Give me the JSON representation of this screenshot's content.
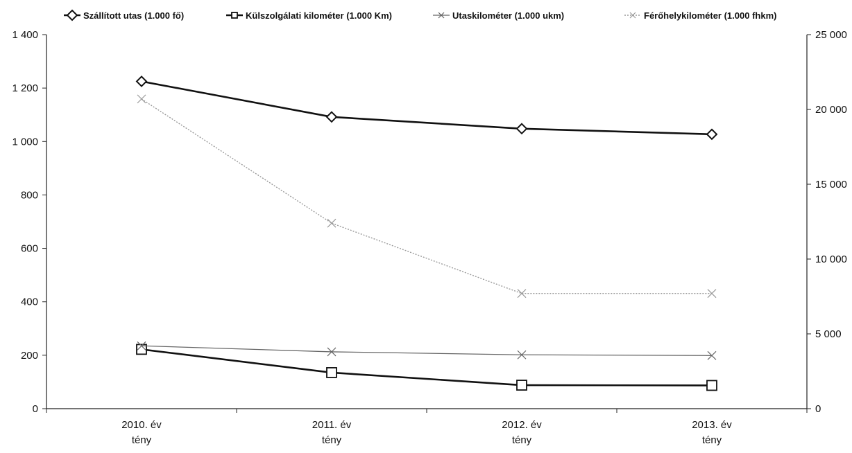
{
  "chart_data": {
    "type": "line",
    "categories": [
      [
        "2010. év",
        "tény"
      ],
      [
        "2011. év",
        "tény"
      ],
      [
        "2012. év",
        "tény"
      ],
      [
        "2013. év",
        "tény"
      ]
    ],
    "y_left": {
      "ylim": [
        0,
        1400
      ],
      "ticks": [
        0,
        200,
        400,
        600,
        800,
        1000,
        1200,
        1400
      ],
      "tick_labels": [
        "0",
        "200",
        "400",
        "600",
        "800",
        "1 000",
        "1 200",
        "1 400"
      ]
    },
    "y_right": {
      "ylim": [
        0,
        25000
      ],
      "ticks": [
        0,
        5000,
        10000,
        15000,
        20000,
        25000
      ],
      "tick_labels": [
        "0",
        "5 000",
        "10 000",
        "15 000",
        "20 000",
        "25 000"
      ]
    },
    "series": [
      {
        "name": "Szállított utas (1.000 fő)",
        "axis": "left",
        "values": [
          1225,
          1092,
          1048,
          1027
        ],
        "color": "#111111",
        "marker": "diamond",
        "style": "solid-thick"
      },
      {
        "name": "Külszolgálati kilométer (1.000 Km)",
        "axis": "left",
        "values": [
          222,
          135,
          88,
          87
        ],
        "color": "#111111",
        "marker": "square",
        "style": "solid-thick"
      },
      {
        "name": "Utaskilométer (1.000 ukm)",
        "axis": "right",
        "values": [
          4200,
          3800,
          3600,
          3550
        ],
        "color": "#666666",
        "marker": "x",
        "style": "thin"
      },
      {
        "name": "Férőhelykilométer (1.000 fhkm)",
        "axis": "right",
        "values": [
          20700,
          12400,
          7700,
          7700
        ],
        "color": "#9a9a9a",
        "marker": "x",
        "style": "dotted"
      }
    ],
    "grid": false,
    "legend_position": "top"
  }
}
